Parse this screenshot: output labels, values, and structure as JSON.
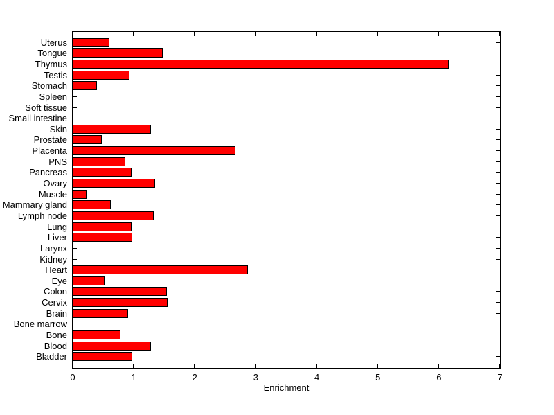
{
  "figure": {
    "background": "#FFFFFF"
  },
  "chart_data": {
    "type": "bar",
    "orientation": "horizontal",
    "title": "",
    "xlabel": "Enrichment",
    "ylabel": "",
    "xlim": [
      0,
      7
    ],
    "xticks": [
      0,
      1,
      2,
      3,
      4,
      5,
      6,
      7
    ],
    "grid": false,
    "box": true,
    "bar_color": "#FF0000",
    "bar_edge_color": "#000000",
    "axis_color": "#000000",
    "categories": [
      "Uterus",
      "Tongue",
      "Thymus",
      "Testis",
      "Stomach",
      "Spleen",
      "Soft tissue",
      "Small intestine",
      "Skin",
      "Prostate",
      "Placenta",
      "PNS",
      "Pancreas",
      "Ovary",
      "Muscle",
      "Mammary gland",
      "Lymph node",
      "Lung",
      "Liver",
      "Larynx",
      "Kidney",
      "Heart",
      "Eye",
      "Colon",
      "Cervix",
      "Brain",
      "Bone marrow",
      "Bone",
      "Blood",
      "Bladder"
    ],
    "values": [
      0.59,
      1.46,
      6.15,
      0.92,
      0.39,
      0,
      0,
      0,
      1.27,
      0.47,
      2.66,
      0.85,
      0.95,
      1.34,
      0.21,
      0.61,
      1.32,
      0.95,
      0.97,
      0,
      0,
      2.86,
      0.51,
      1.53,
      1.54,
      0.9,
      0,
      0.77,
      1.27,
      0.96
    ]
  }
}
